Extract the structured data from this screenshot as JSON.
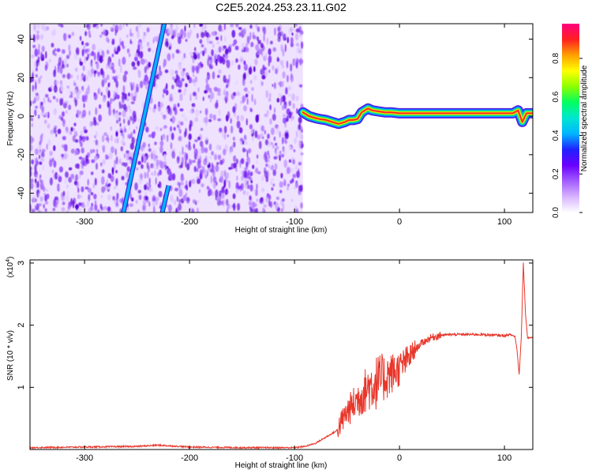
{
  "chart_data": [
    {
      "type": "heatmap",
      "title": "C2E5.2024.253.23.11.G02",
      "xlabel": "Height of straight line (km)",
      "ylabel": "Frequency (Hz)",
      "xlim": [
        -352,
        127
      ],
      "ylim": [
        -50,
        48
      ],
      "xticks": [
        -300,
        -200,
        -100,
        0,
        100
      ],
      "yticks": [
        40,
        20,
        0,
        -20,
        -40
      ],
      "colorbar": {
        "label": "Normalized spectral amplitude",
        "range": [
          0,
          0.98
        ],
        "ticks": [
          "0.0",
          "0.2",
          "0.4",
          "0.6",
          "0.8"
        ],
        "colors": [
          "#ffffff",
          "#d8b4ff",
          "#a35cff",
          "#6a00ff",
          "#2020ff",
          "#00b4ff",
          "#00e6d2",
          "#00ff60",
          "#8cff00",
          "#ffff00",
          "#ffa000",
          "#ff2020",
          "#ff0080"
        ]
      },
      "noise_region_x": [
        -352,
        -92
      ],
      "tracks": [
        {
          "name": "",
          "points": [
            [
              -263,
              -50
            ],
            [
              -224,
              48
            ]
          ],
          "color": "#00b4ff"
        },
        {
          "name": "",
          "points": [
            [
              -226,
              -50
            ],
            [
              -220,
              -36
            ]
          ],
          "color": "#00b4ff"
        }
      ],
      "signal": [
        [
          -92,
          2
        ],
        [
          -86,
          0
        ],
        [
          -80,
          -1
        ],
        [
          -76,
          -1.5
        ],
        [
          -70,
          -2
        ],
        [
          -64,
          -3
        ],
        [
          -58,
          -4
        ],
        [
          -52,
          -3
        ],
        [
          -48,
          -2
        ],
        [
          -44,
          -2
        ],
        [
          -40,
          -1.5
        ],
        [
          -36,
          2
        ],
        [
          -30,
          4
        ],
        [
          -26,
          3
        ],
        [
          -20,
          2.5
        ],
        [
          -14,
          2
        ],
        [
          -8,
          2
        ],
        [
          0,
          1.5
        ],
        [
          20,
          1.5
        ],
        [
          60,
          1.5
        ],
        [
          90,
          1.5
        ],
        [
          108,
          1.5
        ],
        [
          113,
          3
        ],
        [
          117,
          -3
        ],
        [
          121,
          1.5
        ],
        [
          127,
          1.5
        ]
      ]
    },
    {
      "type": "line",
      "title": "",
      "xlabel": "Height of straight line (km)",
      "ylabel": "SNR (10 * v/v)",
      "yscale_label": "(x10",
      "yscale_exp": "4",
      "yscale_close": ")",
      "xlim": [
        -352,
        127
      ],
      "ylim": [
        0,
        3.05
      ],
      "xticks": [
        -300,
        -200,
        -100,
        0,
        100
      ],
      "yticks": [
        1,
        2,
        3
      ],
      "color": "#e8362a",
      "series": [
        {
          "name": "",
          "x": [
            -352,
            -300,
            -250,
            -230,
            -200,
            -150,
            -100,
            -90,
            -80,
            -70,
            -60,
            -55,
            -50,
            -45,
            -40,
            -35,
            -30,
            -25,
            -20,
            -15,
            -10,
            -5,
            0,
            5,
            10,
            15,
            20,
            25,
            30,
            35,
            40,
            50,
            60,
            70,
            80,
            90,
            100,
            105,
            110,
            112,
            114,
            116,
            118,
            120,
            122,
            127
          ],
          "y": [
            0.03,
            0.04,
            0.05,
            0.07,
            0.04,
            0.03,
            0.03,
            0.05,
            0.1,
            0.2,
            0.3,
            0.45,
            0.6,
            0.7,
            0.8,
            0.9,
            1.0,
            1.05,
            1.1,
            1.15,
            1.2,
            1.25,
            1.3,
            1.4,
            1.5,
            1.6,
            1.7,
            1.75,
            1.8,
            1.82,
            1.84,
            1.85,
            1.85,
            1.85,
            1.85,
            1.84,
            1.83,
            1.85,
            1.82,
            1.6,
            1.2,
            1.8,
            3.0,
            2.2,
            1.8,
            1.8
          ]
        }
      ]
    }
  ]
}
